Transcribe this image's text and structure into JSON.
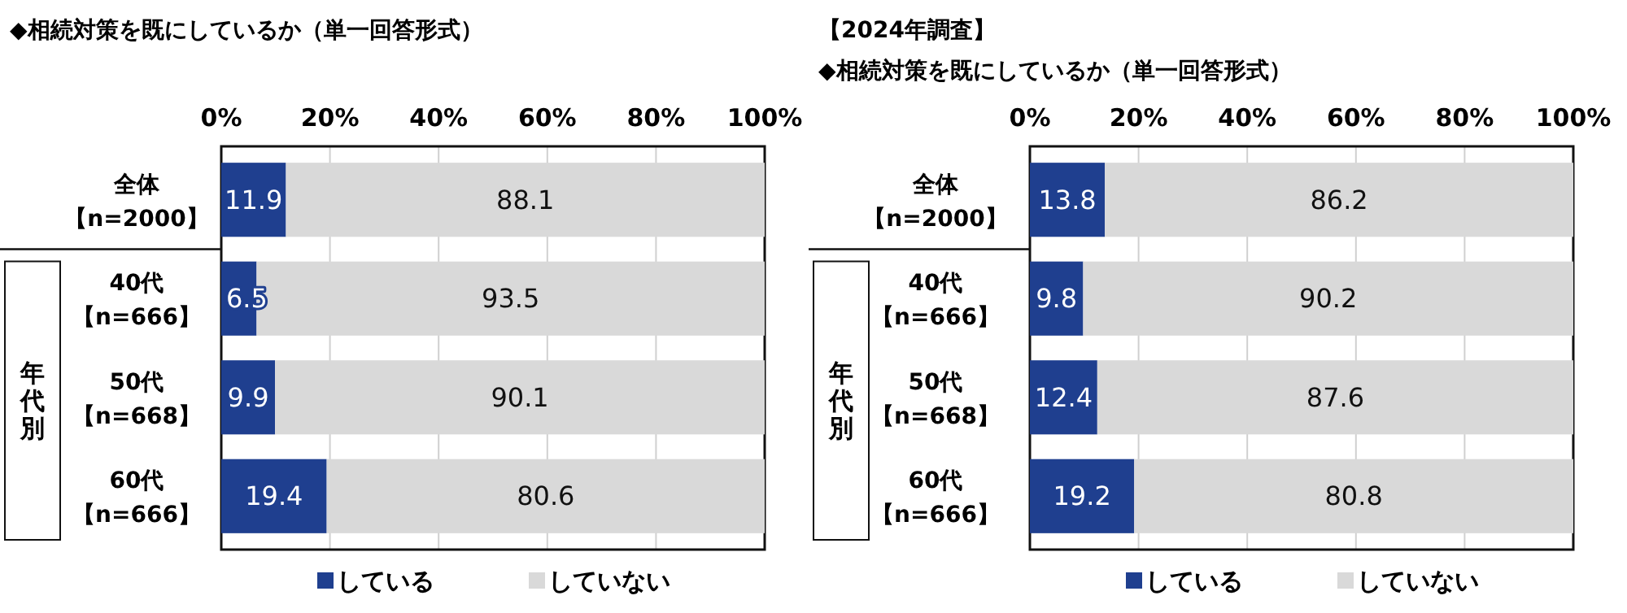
{
  "chart_data": [
    {
      "type": "bar",
      "orientation": "horizontal",
      "stacked": true,
      "title": "◆相続対策を既にしているか（単一回答形式）",
      "categories": [
        "全体【n=2000】",
        "40代【n=666】",
        "50代【n=668】",
        "60代【n=666】"
      ],
      "series": [
        {
          "name": "している",
          "color": "#1f3f8f",
          "values": [
            11.9,
            6.5,
            9.9,
            19.4
          ]
        },
        {
          "name": "していない",
          "color": "#d9d9d9",
          "values": [
            88.1,
            93.5,
            90.1,
            80.6
          ]
        }
      ],
      "xlim": [
        0,
        100
      ],
      "xticks": [
        {
          "value": 0,
          "label": "0%"
        },
        {
          "value": 20,
          "label": "20%"
        },
        {
          "value": 40,
          "label": "40%"
        },
        {
          "value": 60,
          "label": "60%"
        },
        {
          "value": 80,
          "label": "80%"
        },
        {
          "value": 100,
          "label": "100%"
        }
      ],
      "grid": "x",
      "legend": "bottom",
      "data_labels": true,
      "annotations": [
        "年代別"
      ]
    },
    {
      "type": "bar",
      "orientation": "horizontal",
      "stacked": true,
      "title": "【2024年調査】",
      "subtitle": "◆相続対策を既にしているか（単一回答形式）",
      "categories": [
        "全体【n=2000】",
        "40代【n=666】",
        "50代【n=668】",
        "60代【n=666】"
      ],
      "series": [
        {
          "name": "している",
          "color": "#1f3f8f",
          "values": [
            13.8,
            9.8,
            12.4,
            19.2
          ]
        },
        {
          "name": "していない",
          "color": "#d9d9d9",
          "values": [
            86.2,
            90.2,
            87.6,
            80.8
          ]
        }
      ],
      "xlim": [
        0,
        100
      ],
      "xticks": [
        {
          "value": 0,
          "label": "0%"
        },
        {
          "value": 20,
          "label": "20%"
        },
        {
          "value": 40,
          "label": "40%"
        },
        {
          "value": 60,
          "label": "60%"
        },
        {
          "value": 80,
          "label": "80%"
        },
        {
          "value": 100,
          "label": "100%"
        }
      ],
      "grid": "x",
      "legend": "bottom",
      "data_labels": true,
      "annotations": [
        "年代別"
      ]
    }
  ]
}
